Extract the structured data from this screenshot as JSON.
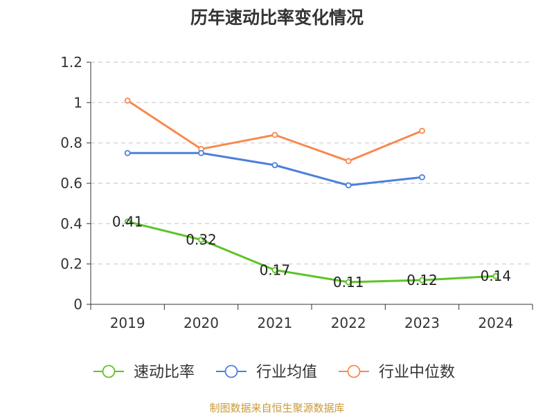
{
  "chart_data": {
    "type": "line",
    "title": "历年速动比率变化情况",
    "xlabel": "",
    "ylabel": "",
    "categories": [
      "2019",
      "2020",
      "2021",
      "2022",
      "2023",
      "2024"
    ],
    "ylim": [
      0,
      1.2
    ],
    "y_ticks": [
      0,
      0.2,
      0.4,
      0.6,
      0.8,
      1,
      1.2
    ],
    "y_tick_labels": [
      "0",
      "0.2",
      "0.4",
      "0.6",
      "0.8",
      "1",
      "1.2"
    ],
    "grid": "horizontal dashed",
    "legend_position": "bottom",
    "series": [
      {
        "name": "速动比率",
        "color": "#5cc426",
        "values": [
          0.41,
          0.32,
          0.17,
          0.11,
          0.12,
          0.14
        ],
        "data_labels": [
          "0.41",
          "0.32",
          "0.17",
          "0.11",
          "0.12",
          "0.14"
        ]
      },
      {
        "name": "行业均值",
        "color": "#4c7fdc",
        "values": [
          0.75,
          0.75,
          0.69,
          0.59,
          0.63,
          null
        ]
      },
      {
        "name": "行业中位数",
        "color": "#f7894d",
        "values": [
          1.01,
          0.77,
          0.84,
          0.71,
          0.86,
          null
        ]
      }
    ]
  },
  "footer": {
    "source": "制图数据来自恒生聚源数据库"
  }
}
